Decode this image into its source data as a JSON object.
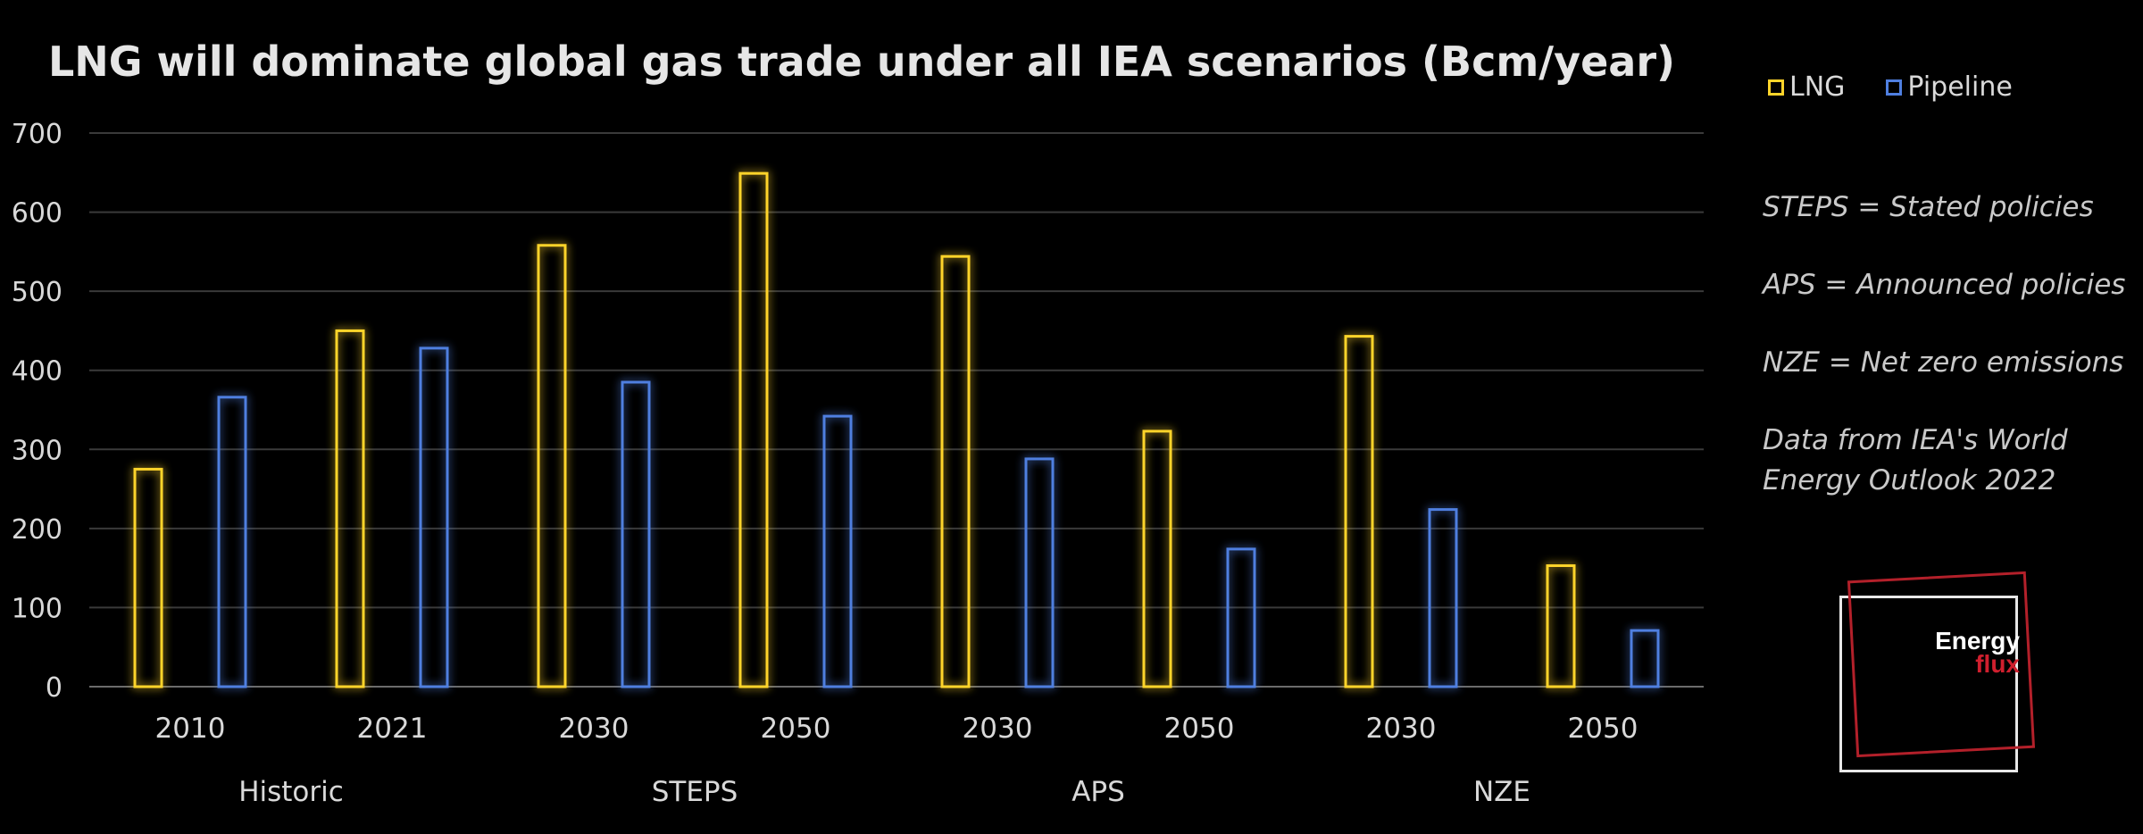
{
  "chart_data": {
    "type": "bar",
    "title": "LNG will dominate global gas trade under all IEA scenarios (Bcm/year)",
    "categories": [
      "2010",
      "2021",
      "2030",
      "2050",
      "2030",
      "2050",
      "2030",
      "2050"
    ],
    "groups": [
      {
        "label": "Historic",
        "span": [
          0,
          1
        ]
      },
      {
        "label": "STEPS",
        "span": [
          2,
          3
        ]
      },
      {
        "label": "APS",
        "span": [
          4,
          5
        ]
      },
      {
        "label": "NZE",
        "span": [
          6,
          7
        ]
      }
    ],
    "series": [
      {
        "name": "LNG",
        "color": "#ffd42a",
        "values": [
          275,
          450,
          558,
          649,
          544,
          323,
          443,
          153
        ]
      },
      {
        "name": "Pipeline",
        "color": "#4f7fe0",
        "values": [
          366,
          428,
          385,
          342,
          288,
          174,
          224,
          71
        ]
      }
    ],
    "ylim": [
      0,
      700
    ],
    "yticks": [
      0,
      100,
      200,
      300,
      400,
      500,
      600,
      700
    ],
    "grid": true,
    "legend_position": "top-right"
  },
  "notes": [
    "STEPS = Stated policies",
    "APS = Announced policies",
    "NZE = Net zero emissions",
    "Data from IEA's World Energy Outlook 2022"
  ],
  "logo": {
    "line1": "Energy",
    "line2": "flux",
    "accent_color": "#d01f2e"
  }
}
